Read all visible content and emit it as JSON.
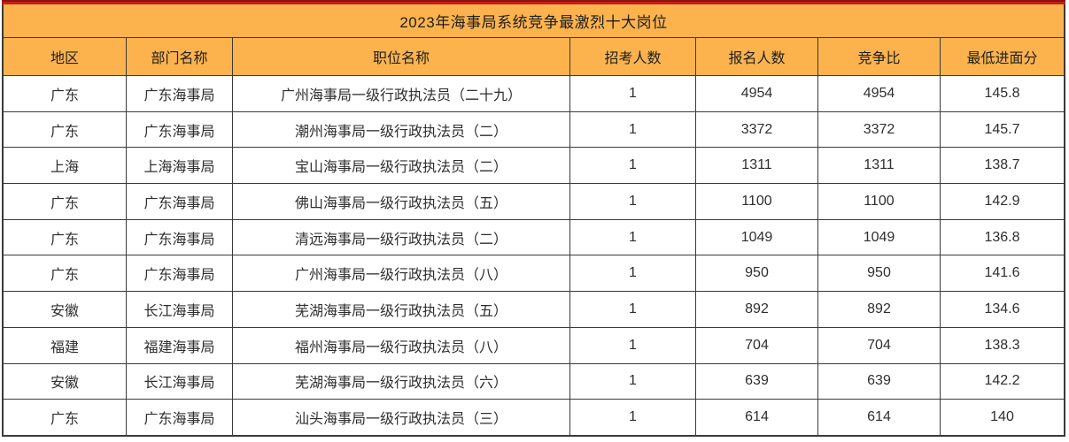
{
  "title": "2023年海事局系统竞争最激烈十大岗位",
  "table": {
    "columns": [
      "地区",
      "部门名称",
      "职位名称",
      "招考人数",
      "报名人数",
      "竞争比",
      "最低进面分"
    ],
    "rows": [
      [
        "广东",
        "广东海事局",
        "广州海事局一级行政执法员（二十九）",
        "1",
        "4954",
        "4954",
        "145.8"
      ],
      [
        "广东",
        "广东海事局",
        "潮州海事局一级行政执法员（二）",
        "1",
        "3372",
        "3372",
        "145.7"
      ],
      [
        "上海",
        "上海海事局",
        "宝山海事局一级行政执法员（二）",
        "1",
        "1311",
        "1311",
        "138.7"
      ],
      [
        "广东",
        "广东海事局",
        "佛山海事局一级行政执法员（五）",
        "1",
        "1100",
        "1100",
        "142.9"
      ],
      [
        "广东",
        "广东海事局",
        "清远海事局一级行政执法员（二）",
        "1",
        "1049",
        "1049",
        "136.8"
      ],
      [
        "广东",
        "广东海事局",
        "广州海事局一级行政执法员（八）",
        "1",
        "950",
        "950",
        "141.6"
      ],
      [
        "安徽",
        "长江海事局",
        "芜湖海事局一级行政执法员（五）",
        "1",
        "892",
        "892",
        "134.6"
      ],
      [
        "福建",
        "福建海事局",
        "福州海事局一级行政执法员（八）",
        "1",
        "704",
        "704",
        "138.3"
      ],
      [
        "安徽",
        "长江海事局",
        "芜湖海事局一级行政执法员（六）",
        "1",
        "639",
        "639",
        "142.2"
      ],
      [
        "广东",
        "广东海事局",
        "汕头海事局一级行政执法员（三）",
        "1",
        "614",
        "614",
        "140"
      ]
    ]
  },
  "colors": {
    "accent_orange": "#fcb34e",
    "accent_red": "#c22016",
    "accent_red_dark": "#8e1013",
    "grid_border": "#3a3a3a",
    "text": "#2e2e2e"
  }
}
